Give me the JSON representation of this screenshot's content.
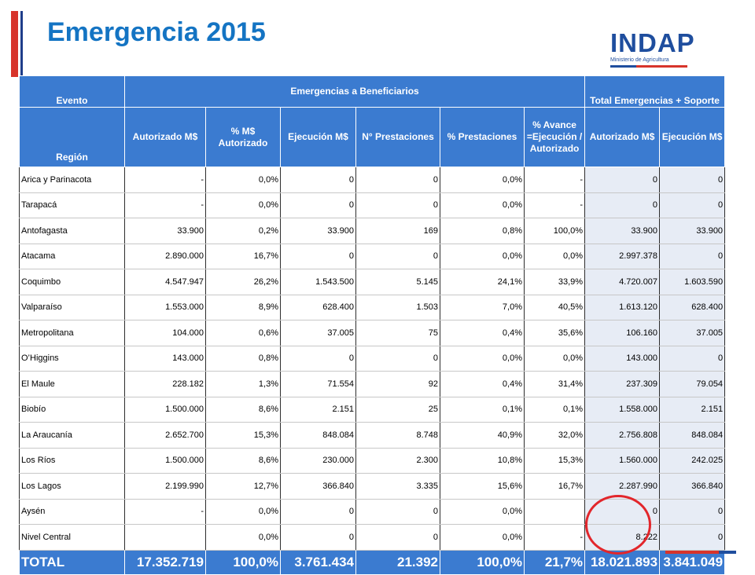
{
  "title": "Emergencia 2015",
  "logo": {
    "name": "INDAP",
    "subtitle": "Ministerio de Agricultura"
  },
  "colors": {
    "header_bg": "#3b7bd0",
    "title": "#1474c3",
    "accent_red": "#d7342b",
    "circle": "#e2262b"
  },
  "table": {
    "group_headers": {
      "evento": "Evento",
      "beneficiarios": "Emergencias a Beneficiarios",
      "total_soporte": "Total Emergencias + Soporte"
    },
    "columns": [
      "Región",
      "Autorizado M$",
      "% M$ Autorizado",
      "Ejecución M$",
      "N° Prestaciones",
      "% Prestaciones",
      "% Avance =Ejecución / Autorizado",
      "Autorizado M$",
      "Ejecución M$"
    ],
    "rows": [
      [
        "Arica y Parinacota",
        "-",
        "0,0%",
        "0",
        "0",
        "0,0%",
        "-",
        "0",
        "0"
      ],
      [
        "Tarapacá",
        "-",
        "0,0%",
        "0",
        "0",
        "0,0%",
        "-",
        "0",
        "0"
      ],
      [
        "Antofagasta",
        "33.900",
        "0,2%",
        "33.900",
        "169",
        "0,8%",
        "100,0%",
        "33.900",
        "33.900"
      ],
      [
        "Atacama",
        "2.890.000",
        "16,7%",
        "0",
        "0",
        "0,0%",
        "0,0%",
        "2.997.378",
        "0"
      ],
      [
        "Coquimbo",
        "4.547.947",
        "26,2%",
        "1.543.500",
        "5.145",
        "24,1%",
        "33,9%",
        "4.720.007",
        "1.603.590"
      ],
      [
        "Valparaíso",
        "1.553.000",
        "8,9%",
        "628.400",
        "1.503",
        "7,0%",
        "40,5%",
        "1.613.120",
        "628.400"
      ],
      [
        "Metropolitana",
        "104.000",
        "0,6%",
        "37.005",
        "75",
        "0,4%",
        "35,6%",
        "106.160",
        "37.005"
      ],
      [
        "O’Higgins",
        "143.000",
        "0,8%",
        "0",
        "0",
        "0,0%",
        "0,0%",
        "143.000",
        "0"
      ],
      [
        "El Maule",
        "228.182",
        "1,3%",
        "71.554",
        "92",
        "0,4%",
        "31,4%",
        "237.309",
        "79.054"
      ],
      [
        "Biobío",
        "1.500.000",
        "8,6%",
        "2.151",
        "25",
        "0,1%",
        "0,1%",
        "1.558.000",
        "2.151"
      ],
      [
        "La Araucanía",
        "2.652.700",
        "15,3%",
        "848.084",
        "8.748",
        "40,9%",
        "32,0%",
        "2.756.808",
        "848.084"
      ],
      [
        "Los Ríos",
        "1.500.000",
        "8,6%",
        "230.000",
        "2.300",
        "10,8%",
        "15,3%",
        "1.560.000",
        "242.025"
      ],
      [
        "Los Lagos",
        "2.199.990",
        "12,7%",
        "366.840",
        "3.335",
        "15,6%",
        "16,7%",
        "2.287.990",
        "366.840"
      ],
      [
        "Aysén",
        "-",
        "0,0%",
        "0",
        "0",
        "0,0%",
        "",
        "0",
        "0"
      ],
      [
        "Nivel Central",
        "",
        "0,0%",
        "0",
        "0",
        "0,0%",
        "-",
        "8.222",
        "0"
      ]
    ],
    "total": [
      "TOTAL",
      "17.352.719",
      "100,0%",
      "3.761.434",
      "21.392",
      "100,0%",
      "21,7%",
      "18.021.893",
      "3.841.049"
    ]
  }
}
